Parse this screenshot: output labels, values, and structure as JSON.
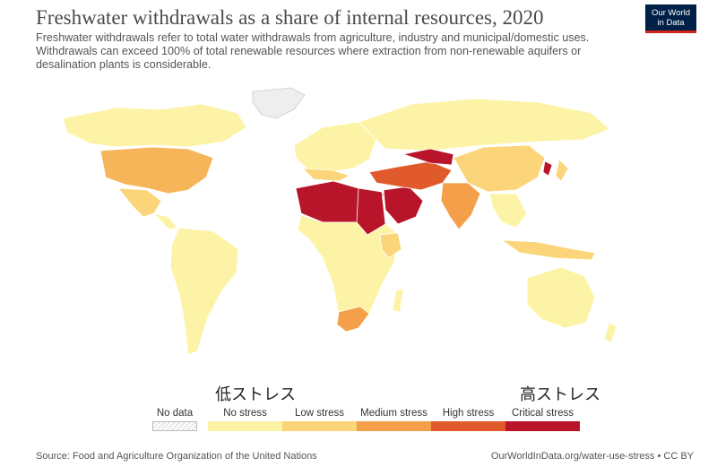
{
  "title": "Freshwater withdrawals as a share of internal resources, 2020",
  "subtitle": "Freshwater withdrawals refer to total water withdrawals from agriculture, industry and municipal/domestic uses. Withdrawals can exceed 100% of total renewable resources where extraction from non-renewable aquifers or desalination plants is considerable.",
  "logo": {
    "line1": "Our World",
    "line2": "in Data"
  },
  "annotations": {
    "low": "低ストレス",
    "high": "高ストレス"
  },
  "legend": {
    "no_data": "No data",
    "categories": [
      {
        "label": "No stress",
        "color": "#fdf3a6"
      },
      {
        "label": "Low stress",
        "color": "#fcd47a"
      },
      {
        "label": "Medium stress",
        "color": "#f4a04a"
      },
      {
        "label": "High stress",
        "color": "#e05a2b"
      },
      {
        "label": "Critical stress",
        "color": "#b8142a"
      }
    ]
  },
  "footer": {
    "source": "Source: Food and Agriculture Organization of the United Nations",
    "url": "OurWorldInData.org/water-use-stress • CC BY"
  }
}
